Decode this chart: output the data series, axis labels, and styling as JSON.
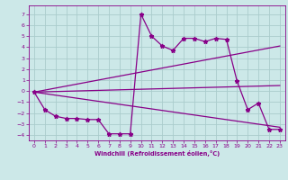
{
  "xlabel": "Windchill (Refroidissement éolien,°C)",
  "background_color": "#cce8e8",
  "grid_color": "#aacccc",
  "line_color": "#880088",
  "xlim": [
    -0.5,
    23.5
  ],
  "ylim": [
    -4.5,
    7.8
  ],
  "yticks": [
    -4,
    -3,
    -2,
    -1,
    0,
    1,
    2,
    3,
    4,
    5,
    6,
    7
  ],
  "xticks": [
    0,
    1,
    2,
    3,
    4,
    5,
    6,
    7,
    8,
    9,
    10,
    11,
    12,
    13,
    14,
    15,
    16,
    17,
    18,
    19,
    20,
    21,
    22,
    23
  ],
  "series0_x": [
    0,
    1,
    2,
    3,
    4,
    5,
    6,
    7,
    8,
    9,
    10,
    11,
    12,
    13,
    14,
    15,
    16,
    17,
    18,
    19,
    20,
    21,
    22,
    23
  ],
  "series0_y": [
    -0.1,
    -1.7,
    -2.3,
    -2.5,
    -2.5,
    -2.6,
    -2.6,
    -3.9,
    -3.9,
    -3.9,
    7.0,
    5.0,
    4.1,
    3.7,
    4.8,
    4.8,
    4.5,
    4.8,
    4.7,
    0.9,
    -1.7,
    -1.1,
    -3.5,
    -3.5
  ],
  "series1_x": [
    0,
    23
  ],
  "series1_y": [
    -0.1,
    -3.3
  ],
  "series2_x": [
    0,
    23
  ],
  "series2_y": [
    -0.1,
    4.1
  ],
  "series3_x": [
    0,
    23
  ],
  "series3_y": [
    -0.1,
    0.5
  ]
}
